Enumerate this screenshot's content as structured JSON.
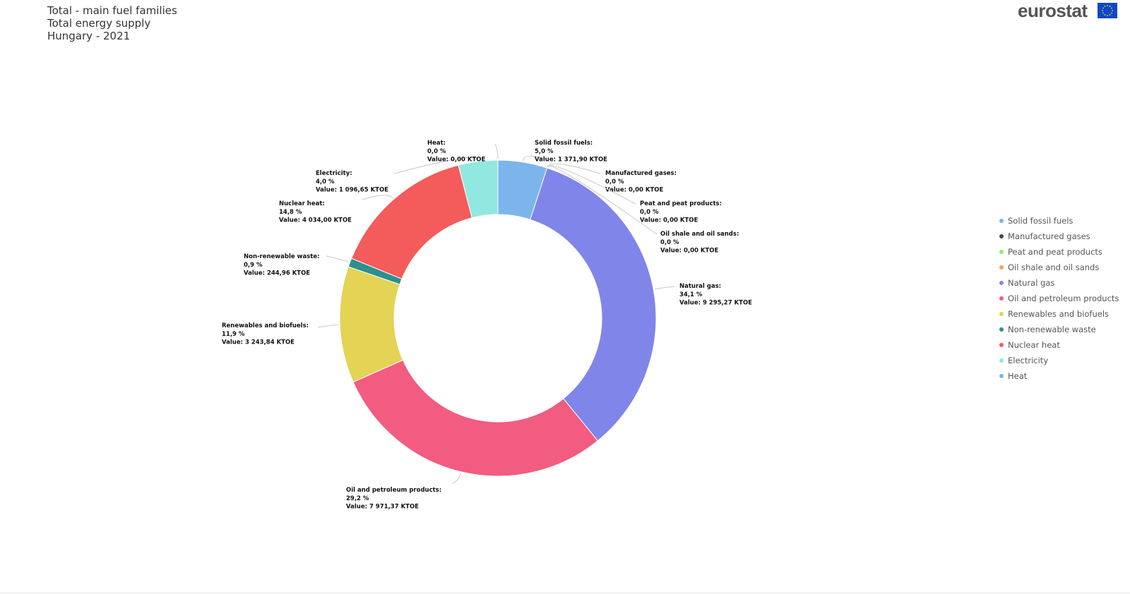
{
  "header": {
    "title_line1": "Total - main fuel families",
    "title_line2": "Total energy supply",
    "title_line3": "Hungary - 2021"
  },
  "logo": {
    "text": "eurostat",
    "flag_color": "#0e47cb",
    "star_color": "#ffdd00"
  },
  "chart_data": {
    "type": "pie",
    "variant": "donut",
    "title": "Total - main fuel families",
    "subtitle": "Total energy supply, Hungary - 2021",
    "unit": "KTOE",
    "slices": [
      {
        "name": "Solid fossil fuels",
        "label_name": "Solid fossil fuels:",
        "pct": "5,0 %",
        "value": 1371.9,
        "value_text": "Value: 1 371,90 KTOE",
        "color": "#7cb5ec"
      },
      {
        "name": "Manufactured gases",
        "label_name": "Manufactured gases:",
        "pct": "0,0 %",
        "value": 0.0,
        "value_text": "Value: 0,00 KTOE",
        "color": "#434348"
      },
      {
        "name": "Peat and peat products",
        "label_name": "Peat and peat products:",
        "pct": "0,0 %",
        "value": 0.0,
        "value_text": "Value: 0,00 KTOE",
        "color": "#90ed7d"
      },
      {
        "name": "Oil shale and oil sands",
        "label_name": "Oil shale and oil sands:",
        "pct": "0,0 %",
        "value": 0.0,
        "value_text": "Value: 0,00 KTOE",
        "color": "#f7a35c"
      },
      {
        "name": "Natural gas",
        "label_name": "Natural gas:",
        "pct": "34,1 %",
        "value": 9295.27,
        "value_text": "Value: 9 295,27 KTOE",
        "color": "#8085e9"
      },
      {
        "name": "Oil and petroleum products",
        "label_name": "Oil and petroleum products:",
        "pct": "29,2 %",
        "value": 7971.37,
        "value_text": "Value: 7 971,37 KTOE",
        "color": "#f15c80"
      },
      {
        "name": "Renewables and biofuels",
        "label_name": "Renewables and biofuels:",
        "pct": "11,9 %",
        "value": 3243.84,
        "value_text": "Value: 3 243,84 KTOE",
        "color": "#e4d354"
      },
      {
        "name": "Non-renewable waste",
        "label_name": "Non-renewable waste:",
        "pct": "0,9 %",
        "value": 244.96,
        "value_text": "Value: 244,96 KTOE",
        "color": "#2b908f"
      },
      {
        "name": "Nuclear heat",
        "label_name": "Nuclear heat:",
        "pct": "14,8 %",
        "value": 4034.0,
        "value_text": "Value: 4 034,00 KTOE",
        "color": "#f45b5b"
      },
      {
        "name": "Electricity",
        "label_name": "Electricity:",
        "pct": "4,0 %",
        "value": 1096.65,
        "value_text": "Value: 1 096,65 KTOE",
        "color": "#91e8e1"
      },
      {
        "name": "Heat",
        "label_name": "Heat:",
        "pct": "0,0 %",
        "value": 0.0,
        "value_text": "Value: 0,00 KTOE",
        "color": "#7cb5ec"
      }
    ],
    "legend_position": "right"
  }
}
